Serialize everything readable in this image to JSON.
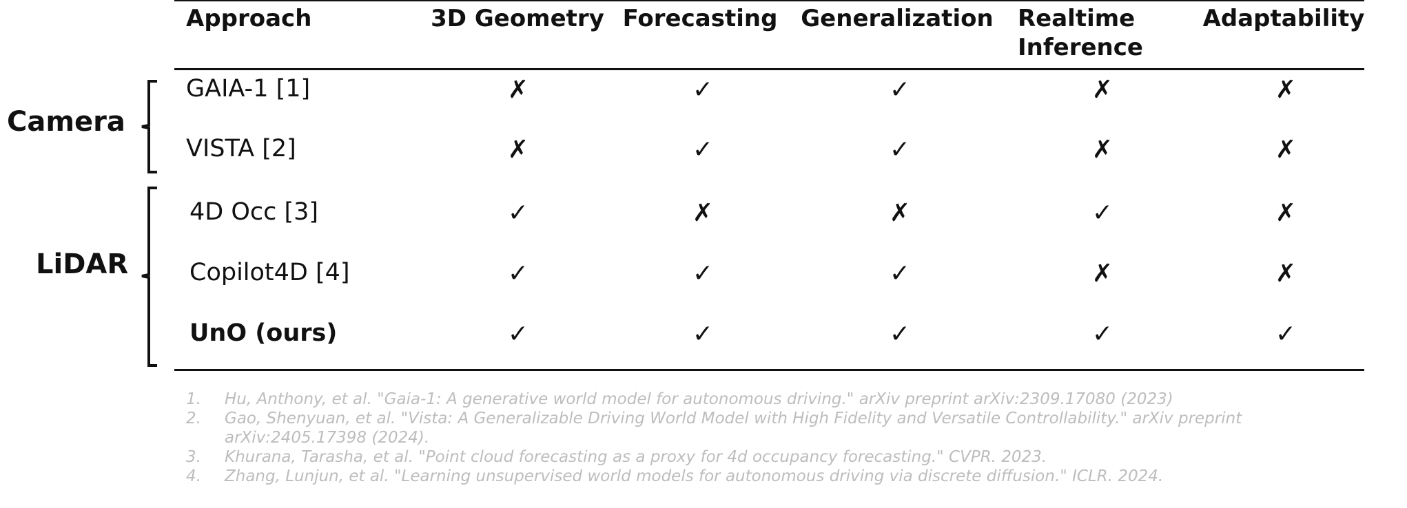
{
  "table": {
    "headers": {
      "approach": "Approach",
      "geometry": "3D Geometry",
      "forecasting": "Forecasting",
      "generalization": "Generalization",
      "realtime_line1": "Realtime",
      "realtime_line2": "Inference",
      "adaptability": "Adaptability"
    },
    "groups": {
      "camera": "Camera",
      "lidar": "LiDAR"
    },
    "rows": [
      {
        "name": "GAIA-1 [1]",
        "group": "camera",
        "geometry": "✗",
        "forecasting": "✓",
        "generalization": "✓",
        "realtime": "✗",
        "adaptability": "✗"
      },
      {
        "name": "VISTA [2]",
        "group": "camera",
        "geometry": "✗",
        "forecasting": "✓",
        "generalization": "✓",
        "realtime": "✗",
        "adaptability": "✗"
      },
      {
        "name": "4D Occ [3]",
        "group": "lidar",
        "geometry": "✓",
        "forecasting": "✗",
        "generalization": "✗",
        "realtime": "✓",
        "adaptability": "✗"
      },
      {
        "name": "Copilot4D [4]",
        "group": "lidar",
        "geometry": "✓",
        "forecasting": "✓",
        "generalization": "✓",
        "realtime": "✗",
        "adaptability": "✗"
      },
      {
        "name": "UnO (ours)",
        "group": "lidar",
        "geometry": "✓",
        "forecasting": "✓",
        "generalization": "✓",
        "realtime": "✓",
        "adaptability": "✓"
      }
    ]
  },
  "references": [
    {
      "num": "1.",
      "text": "Hu, Anthony, et al. \"Gaia-1: A generative world model for autonomous driving.\" arXiv preprint arXiv:2309.17080 (2023)"
    },
    {
      "num": "2.",
      "text": "Gao, Shenyuan, et al. \"Vista: A Generalizable Driving World Model with High Fidelity and Versatile Controllability.\" arXiv preprint arXiv:2405.17398 (2024)."
    },
    {
      "num": "3.",
      "text": "Khurana, Tarasha, et al. \"Point cloud forecasting as a proxy for 4d occupancy forecasting.\" CVPR. 2023."
    },
    {
      "num": "4.",
      "text": "Zhang, Lunjun, et al. \"Learning unsupervised world models for autonomous driving via discrete diffusion.\" ICLR. 2024."
    }
  ]
}
